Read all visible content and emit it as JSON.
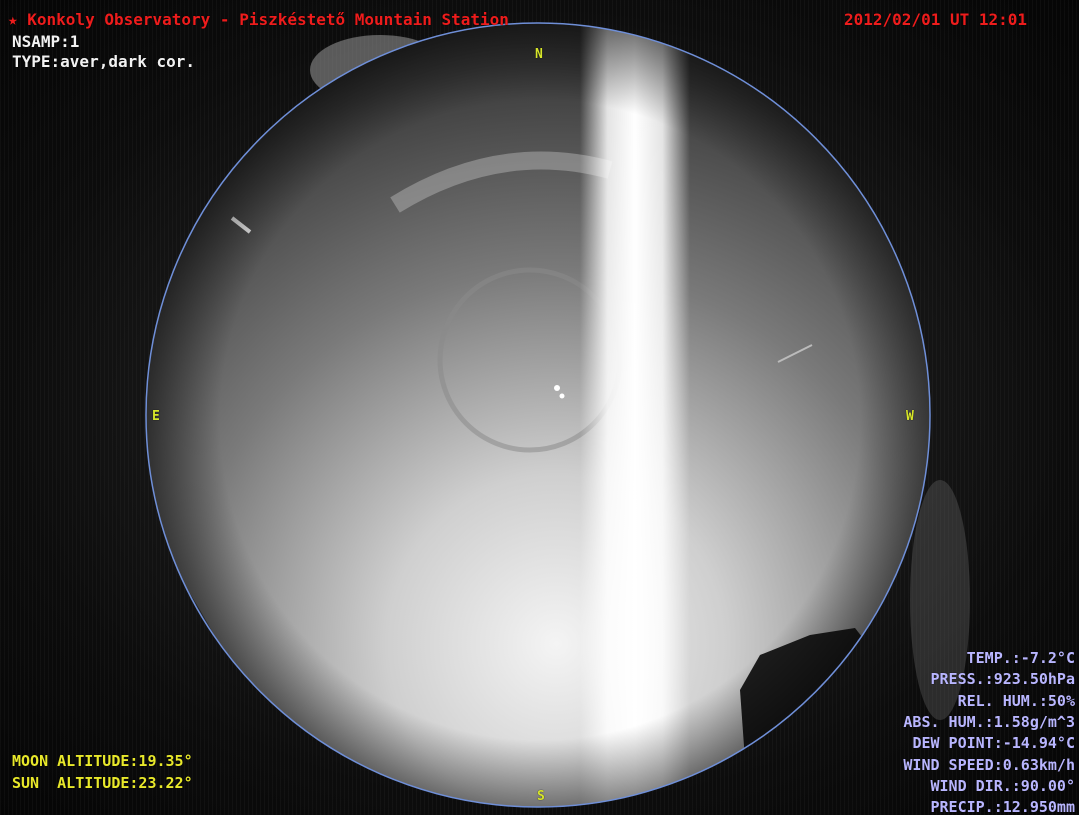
{
  "header": {
    "station": "★ Konkoly Observatory - Piszkéstető Mountain Station",
    "timestamp": "2012/02/01 UT 12:01"
  },
  "capture": {
    "nsamp": "NSAMP:1",
    "type": "TYPE:aver,dark cor."
  },
  "compass": {
    "north": "N",
    "south": "S",
    "east": "E",
    "west": "W"
  },
  "altitudes": {
    "moon": "MOON ALTITUDE:19.35°",
    "sun": "SUN  ALTITUDE:23.22°"
  },
  "weather": {
    "temp": "TEMP.:-7.2°C",
    "press": "PRESS.:923.50hPa",
    "rel_hum": "REL. HUM.:50%",
    "abs_hum": "ABS. HUM.:1.58g/m^3",
    "dew_point": "DEW POINT:-14.94°C",
    "wind_speed": "WIND SPEED:0.63km/h",
    "wind_dir": "WIND DIR.:90.00°",
    "precip": "PRECIP.:12.950mm"
  },
  "colors": {
    "header_text": "#ee1c1c",
    "info_text": "#f2f2f2",
    "altitude_text": "#e8e82a",
    "weather_text": "#b9b6ff",
    "horizon_circle": "#6f8fd8"
  }
}
